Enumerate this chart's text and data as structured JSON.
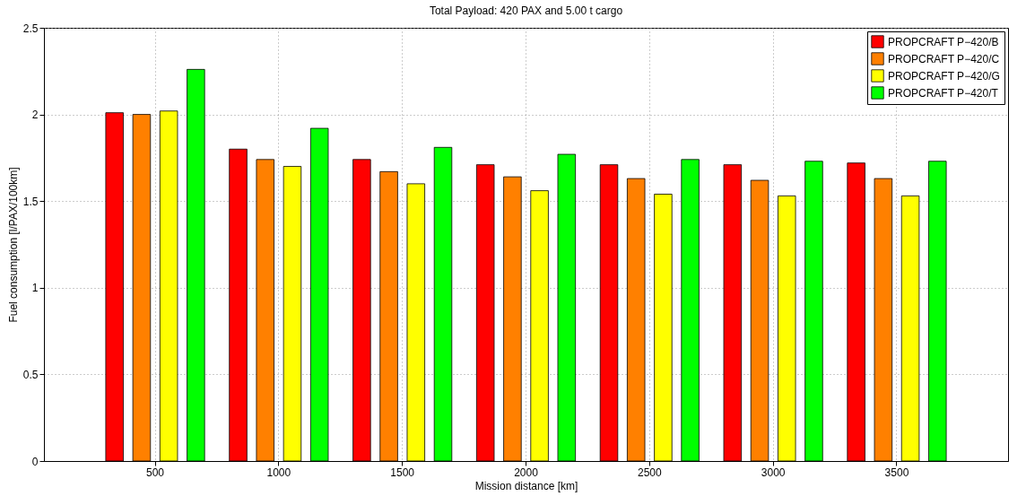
{
  "chart_data": {
    "type": "bar",
    "title": "Total Payload: 420 PAX and 5.00 t cargo",
    "xlabel": "Mission distance [km]",
    "ylabel": "Fuel consumption [l/PAX/100km]",
    "categories": [
      "500",
      "1000",
      "1500",
      "2000",
      "2500",
      "3000",
      "3500"
    ],
    "series": [
      {
        "name": "PROPCRAFT P−420/B",
        "color": "#ff0000",
        "values": [
          2.01,
          1.8,
          1.74,
          1.71,
          1.71,
          1.71,
          1.72
        ]
      },
      {
        "name": "PROPCRAFT P−420/C",
        "color": "#ff8000",
        "values": [
          2.0,
          1.74,
          1.67,
          1.64,
          1.63,
          1.62,
          1.63
        ]
      },
      {
        "name": "PROPCRAFT P−420/G",
        "color": "#ffff00",
        "values": [
          2.02,
          1.7,
          1.6,
          1.56,
          1.54,
          1.53,
          1.53
        ]
      },
      {
        "name": "PROPCRAFT P−420/T",
        "color": "#00ff00",
        "values": [
          2.26,
          1.92,
          1.81,
          1.77,
          1.74,
          1.73,
          1.73
        ]
      }
    ],
    "ylim": [
      0,
      2.5
    ],
    "yticks": [
      0,
      0.5,
      1,
      1.5,
      2,
      2.5
    ],
    "grid": true,
    "legend": "top right"
  }
}
